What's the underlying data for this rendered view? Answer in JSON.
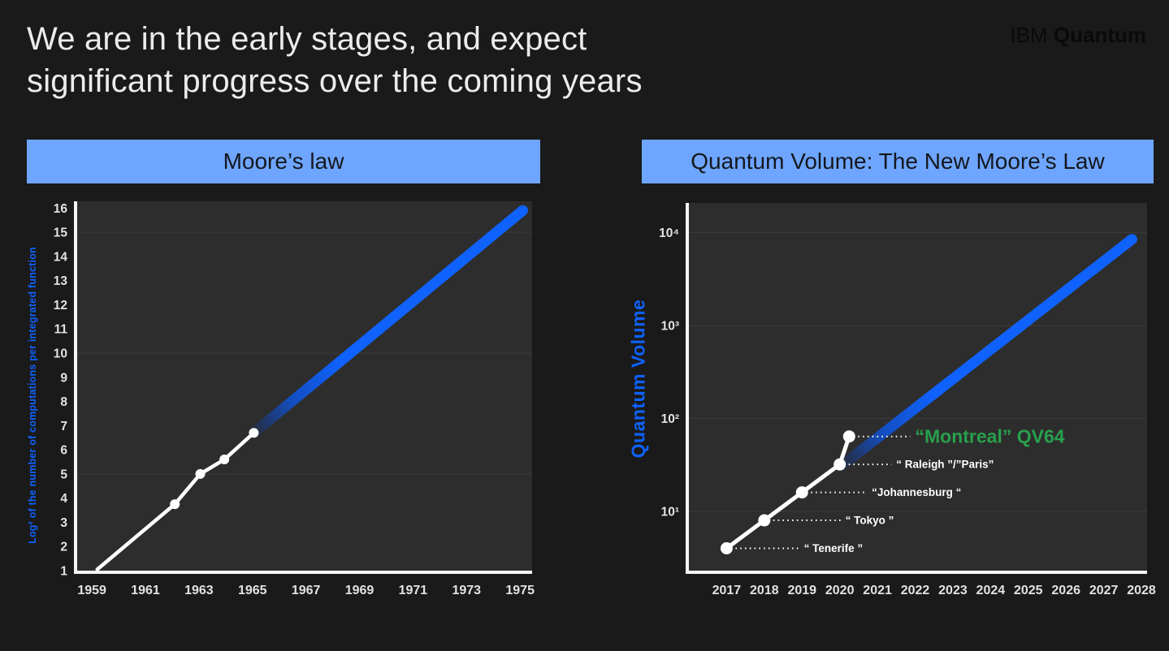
{
  "header": {
    "title_line1": "We are in the early stages, and expect",
    "title_line2": "significant progress over the coming years",
    "logo_ibm": "IBM",
    "logo_quantum": "Quantum"
  },
  "colors": {
    "background": "#1a1a1a",
    "plot_background": "#2d2d2d",
    "gridline": "#3b3b3b",
    "panel_header_blue": "#6ea6ff",
    "accent_blue": "#0f62fe",
    "annotation_green": "#28a04c",
    "axis_white": "#f5f5f5",
    "tick_text": "#e2e2e2",
    "projection_gradient_from": "#262c3d",
    "projection_gradient_mid": "#134ec2"
  },
  "chart_data": [
    {
      "id": "moore",
      "type": "line",
      "title": "Moore’s law",
      "ylabel": "Log² of the number of computations per integrated function",
      "xlabel": "",
      "x_ticks": [
        1959,
        1961,
        1963,
        1965,
        1967,
        1969,
        1971,
        1973,
        1975
      ],
      "y_ticks": [
        1,
        2,
        3,
        4,
        5,
        6,
        7,
        8,
        9,
        10,
        11,
        12,
        13,
        14,
        15,
        16
      ],
      "xlim": [
        1958.45,
        1975.45
      ],
      "ylim": [
        1,
        16.28
      ],
      "log_y": false,
      "grid_values": [
        5,
        10,
        15
      ],
      "legend": "none",
      "series": [
        {
          "name": "observed-data",
          "color": "#ffffff",
          "width": 4.5,
          "marker_r": 6,
          "marker_indices": [
            1,
            2,
            3,
            4
          ],
          "points": [
            [
              1959.2,
              1.05
            ],
            [
              1962.1,
              3.75
            ],
            [
              1963.05,
              5.0
            ],
            [
              1963.95,
              5.6
            ],
            [
              1965.05,
              6.7
            ]
          ]
        },
        {
          "name": "projection",
          "color": "#0f62fe",
          "width": 13,
          "gradient": true,
          "marker_indices": [],
          "points": [
            [
              1965.05,
              6.7
            ],
            [
              1975.1,
              15.9
            ]
          ]
        }
      ],
      "annotations": []
    },
    {
      "id": "quantum-volume",
      "type": "line",
      "title": "Quantum Volume: The New Moore’s Law",
      "ylabel": "Quantum Volume",
      "xlabel": "",
      "x_ticks": [
        2017,
        2018,
        2019,
        2020,
        2021,
        2022,
        2023,
        2024,
        2025,
        2026,
        2027,
        2028
      ],
      "y_ticks": [
        {
          "value": 10,
          "label": "10¹"
        },
        {
          "value": 100,
          "label": "10²"
        },
        {
          "value": 1000,
          "label": "10³"
        },
        {
          "value": 10000,
          "label": "10⁴"
        }
      ],
      "xlim": [
        2016.0,
        2028.15
      ],
      "ylim": [
        2.3,
        20900
      ],
      "log_y": true,
      "grid_values": [
        10,
        100,
        1000,
        10000
      ],
      "legend": "none",
      "series": [
        {
          "name": "achieved-systems",
          "color": "#ffffff",
          "width": 5,
          "marker_r": 7.5,
          "marker_indices": [
            0,
            1,
            2,
            3,
            4
          ],
          "points": [
            [
              2017,
              4
            ],
            [
              2018,
              8
            ],
            [
              2019,
              16
            ],
            [
              2020,
              32
            ],
            [
              2020.25,
              64
            ]
          ]
        },
        {
          "name": "projection",
          "color": "#0f62fe",
          "width": 13,
          "gradient": true,
          "marker_indices": [],
          "points": [
            [
              2020.05,
              31
            ],
            [
              2027.75,
              8500
            ]
          ]
        }
      ],
      "annotations": [
        {
          "label": "“ Tenerife ”",
          "x": 2017,
          "value": 4,
          "label_x": 2019.05,
          "color": "#ffffff",
          "font_size": 13.5
        },
        {
          "label": "“ Tokyo ”",
          "x": 2018,
          "value": 8,
          "label_x": 2020.15,
          "color": "#ffffff",
          "font_size": 13.5
        },
        {
          "label": "“Johannesburg “",
          "x": 2019,
          "value": 16,
          "label_x": 2020.85,
          "color": "#ffffff",
          "font_size": 13.5
        },
        {
          "label": "“ Raleigh ”/”Paris”",
          "x": 2020,
          "value": 32,
          "label_x": 2021.5,
          "color": "#ffffff",
          "font_size": 13.5
        },
        {
          "label": "“Montreal” QV64",
          "x": 2020.25,
          "value": 64,
          "label_x": 2022.0,
          "color": "#28a04c",
          "font_size": 23
        }
      ]
    }
  ]
}
